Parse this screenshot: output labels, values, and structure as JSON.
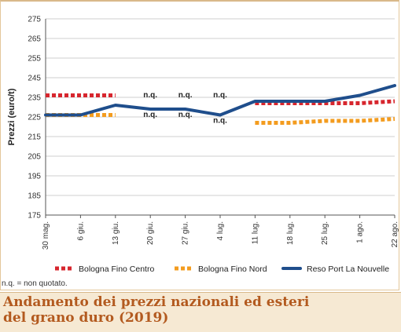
{
  "chart_data": {
    "type": "line",
    "ylabel": "Prezzi (euro/t)",
    "ylim": [
      175,
      275
    ],
    "yticks": [
      175,
      185,
      195,
      205,
      215,
      225,
      235,
      245,
      255,
      265,
      275
    ],
    "categories": [
      "30 mag.",
      "6 giu.",
      "13 giu.",
      "20 giu.",
      "27 giu.",
      "4 lug.",
      "11 lug.",
      "18 lug.",
      "25 lug.",
      "1 ago.",
      "22 ago."
    ],
    "grid": true,
    "legend_position": "bottom",
    "series": [
      {
        "name": "Bologna Fino Centro",
        "style": "dotted",
        "color": "#d7262e",
        "values": [
          236,
          236,
          236,
          null,
          null,
          null,
          232,
          232,
          232,
          232,
          233
        ]
      },
      {
        "name": "Bologna Fino Nord",
        "style": "dotted",
        "color": "#f39c1f",
        "values": [
          226,
          226,
          226,
          null,
          null,
          null,
          222,
          222,
          223,
          223,
          224
        ]
      },
      {
        "name": "Reso Port La Nouvelle",
        "style": "solid",
        "color": "#1f4e8c",
        "values": [
          226,
          226,
          231,
          229,
          229,
          226,
          233,
          233,
          233,
          236,
          241
        ]
      }
    ],
    "annotations": [
      {
        "x": "20 giu.",
        "y": 235,
        "text": "n.q."
      },
      {
        "x": "20 giu.",
        "y": 225,
        "text": "n.q."
      },
      {
        "x": "27 giu.",
        "y": 235,
        "text": "n.q."
      },
      {
        "x": "27 giu.",
        "y": 225,
        "text": "n.q."
      },
      {
        "x": "4 lug.",
        "y": 235,
        "text": "n.q."
      },
      {
        "x": "4 lug.",
        "y": 222,
        "text": "n.q."
      }
    ]
  },
  "note": "n.q. = non quotato.",
  "caption": {
    "line1": "Andamento dei prezzi nazionali ed esteri",
    "line2": "del grano duro (2019)"
  }
}
